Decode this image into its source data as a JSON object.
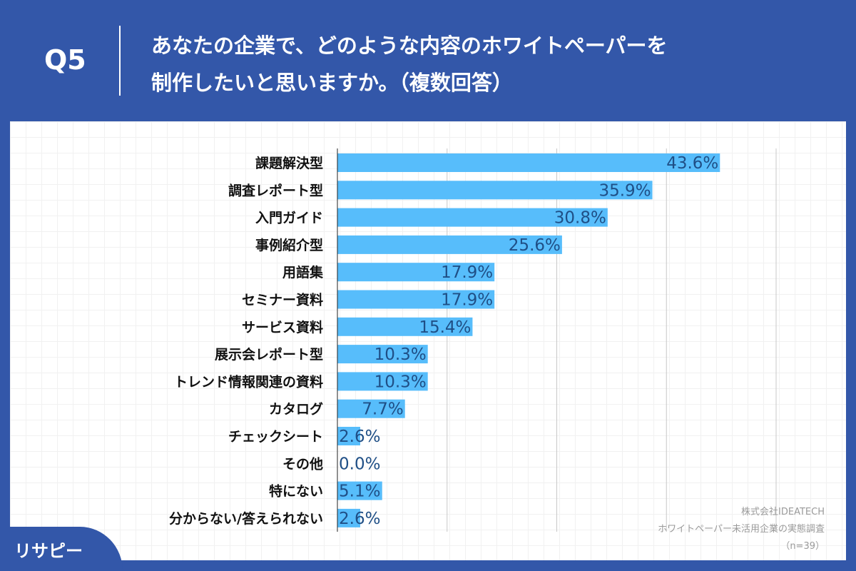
{
  "header": {
    "q_label": "Q5",
    "title_line1": "あなたの企業で、どのような内容のホワイトペーパーを",
    "title_line2": "制作したいと思いますか。（複数回答）"
  },
  "credit": {
    "company": "株式会社IDEATECH",
    "survey": "ホワイトペーパー未活用企業の実態調査",
    "n": "（n=39）"
  },
  "logo": {
    "text": "リサピー"
  },
  "chart_data": {
    "type": "bar",
    "orientation": "horizontal",
    "categories": [
      "課題解決型",
      "調査レポート型",
      "入門ガイド",
      "事例紹介型",
      "用語集",
      "セミナー資料",
      "サービス資料",
      "展示会レポート型",
      "トレンド情報関連の資料",
      "カタログ",
      "チェックシート",
      "その他",
      "特にない",
      "分からない/答えられない"
    ],
    "values": [
      43.6,
      35.9,
      30.8,
      25.6,
      17.9,
      17.9,
      15.4,
      10.3,
      10.3,
      7.7,
      2.6,
      0.0,
      5.1,
      2.6
    ],
    "labels": [
      "43.6%",
      "35.9%",
      "30.8%",
      "25.6%",
      "17.9%",
      "17.9%",
      "15.4%",
      "10.3%",
      "10.3%",
      "7.7%",
      "2.6%",
      "0.0%",
      "5.1%",
      "2.6%"
    ],
    "xlim": [
      0,
      50
    ],
    "grid": true,
    "bar_color": "#57bdfb",
    "label_color": "#1f4f86"
  }
}
